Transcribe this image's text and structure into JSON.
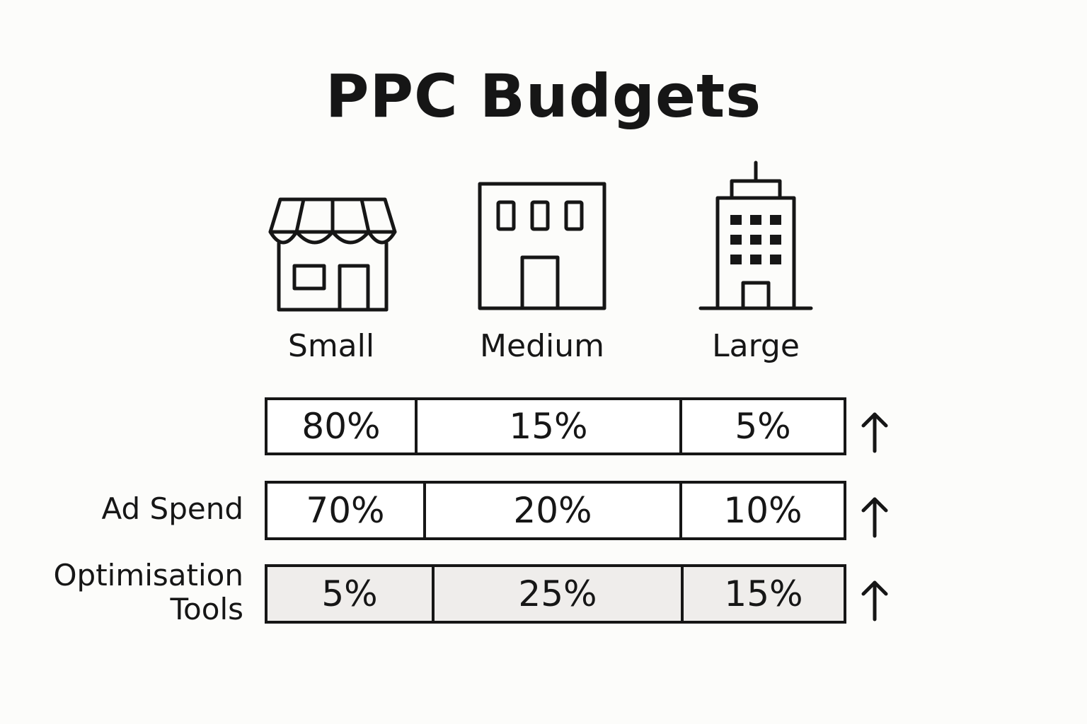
{
  "title": "PPC Budgets",
  "columns": [
    {
      "label": "Small",
      "icon": "storefront-icon"
    },
    {
      "label": "Medium",
      "icon": "building-icon"
    },
    {
      "label": "Large",
      "icon": "skyscraper-icon"
    }
  ],
  "rows": [
    {
      "label": "",
      "cells": [
        "80%",
        "15%",
        "5%"
      ],
      "trend": "up-arrow-icon"
    },
    {
      "label": "Ad Spend",
      "cells": [
        "70%",
        "20%",
        "10%"
      ],
      "trend": "up-arrow-icon"
    },
    {
      "label_lines": [
        "Optimisation",
        "Tools"
      ],
      "cells": [
        "5%",
        "25%",
        "15%"
      ],
      "trend": "up-arrow-icon"
    }
  ]
}
